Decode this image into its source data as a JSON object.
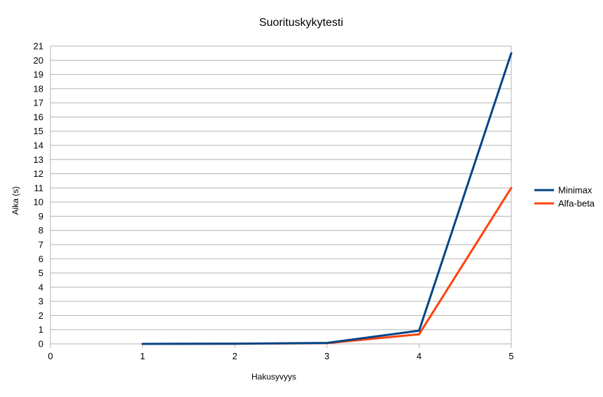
{
  "chart_data": {
    "type": "line",
    "title": "Suorituskykytesti",
    "xlabel": "Hakusyvyys",
    "ylabel": "Aika (s)",
    "x": [
      1,
      2,
      3,
      4,
      5
    ],
    "xlim": [
      0,
      5
    ],
    "ylim": [
      0,
      21
    ],
    "x_ticks": [
      0,
      1,
      2,
      3,
      4,
      5
    ],
    "y_ticks": [
      0,
      1,
      2,
      3,
      4,
      5,
      6,
      7,
      8,
      9,
      10,
      11,
      12,
      13,
      14,
      15,
      16,
      17,
      18,
      19,
      20,
      21
    ],
    "grid": true,
    "legend_position": "right",
    "series": [
      {
        "name": "Minimax",
        "color": "#004586",
        "values": [
          0.0,
          0.01,
          0.07,
          0.93,
          20.5
        ]
      },
      {
        "name": "Alfa-beta",
        "color": "#ff420e",
        "values": [
          0.0,
          0.01,
          0.05,
          0.68,
          11.0
        ]
      }
    ]
  }
}
